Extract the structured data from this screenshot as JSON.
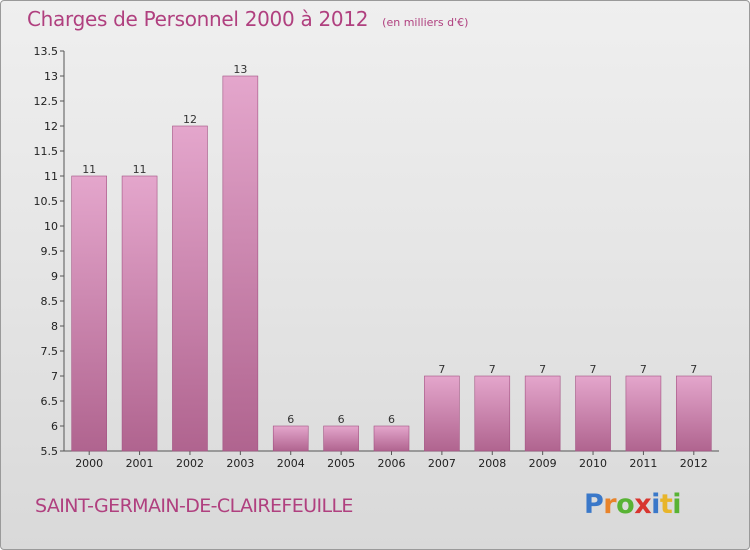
{
  "header": {
    "title": "Charges de Personnel 2000 à 2012",
    "subtitle": "(en milliers d'€)"
  },
  "footer": {
    "commune": "SAINT-GERMAIN-DE-CLAIREFEUILLE",
    "brand": "Proxiti",
    "brand_letter_colors": [
      "#3a78c9",
      "#e8832a",
      "#58b334",
      "#d8352f",
      "#3a78c9",
      "#e8b52a",
      "#58b334"
    ]
  },
  "colors": {
    "accent": "#b0407f",
    "bar_top": "#e4a6cc",
    "bar_bottom": "#b0648f",
    "bar_edge": "#a35383"
  },
  "chart_data": {
    "type": "bar",
    "title": "Charges de Personnel 2000 à 2012",
    "subtitle": "(en milliers d'€)",
    "xlabel": "",
    "ylabel": "",
    "categories": [
      "2000",
      "2001",
      "2002",
      "2003",
      "2004",
      "2005",
      "2006",
      "2007",
      "2008",
      "2009",
      "2010",
      "2011",
      "2012"
    ],
    "values": [
      11,
      11,
      12,
      13,
      6,
      6,
      6,
      7,
      7,
      7,
      7,
      7,
      7
    ],
    "value_labels": [
      "11",
      "11",
      "12",
      "13",
      "6",
      "6",
      "6",
      "7",
      "7",
      "7",
      "7",
      "7",
      "7"
    ],
    "ylim": [
      5.5,
      13.5
    ],
    "yticks": [
      5.5,
      6,
      6.5,
      7,
      7.5,
      8,
      8.5,
      9,
      9.5,
      10,
      10.5,
      11,
      11.5,
      12,
      12.5,
      13,
      13.5
    ],
    "ytick_labels": [
      "5.5",
      "6",
      "6.5",
      "7",
      "7.5",
      "8",
      "8.5",
      "9",
      "9.5",
      "10",
      "10.5",
      "11",
      "11.5",
      "12",
      "12.5",
      "13",
      "13.5"
    ],
    "grid": false,
    "legend": "none"
  }
}
